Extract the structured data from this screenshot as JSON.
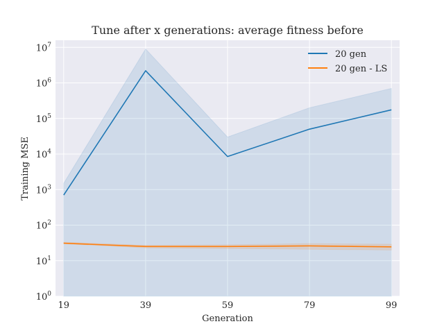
{
  "chart_data": {
    "type": "line",
    "title": "Tune after x generations: average fitness before",
    "xlabel": "Generation",
    "ylabel": "Training MSE",
    "x": [
      19,
      39,
      59,
      79,
      99
    ],
    "xlim": [
      17,
      101
    ],
    "yscale": "log",
    "ylim_exp": [
      0,
      7.2
    ],
    "y_ticks": [
      {
        "base": "10",
        "exp": "0",
        "value": 1
      },
      {
        "base": "10",
        "exp": "1",
        "value": 10
      },
      {
        "base": "10",
        "exp": "2",
        "value": 100
      },
      {
        "base": "10",
        "exp": "3",
        "value": 1000
      },
      {
        "base": "10",
        "exp": "4",
        "value": 10000
      },
      {
        "base": "10",
        "exp": "5",
        "value": 100000
      },
      {
        "base": "10",
        "exp": "6",
        "value": 1000000
      },
      {
        "base": "10",
        "exp": "7",
        "value": 10000000
      }
    ],
    "grid": true,
    "legend_position": "top-right",
    "series": [
      {
        "name": "20 gen",
        "color": "#1f77b4",
        "values": [
          700,
          2200000,
          8500,
          50000,
          175000
        ],
        "ci_low": [
          1,
          1,
          1,
          1,
          1
        ],
        "ci_high": [
          1500,
          9000000,
          30000,
          200000,
          700000
        ]
      },
      {
        "name": "20 gen - LS",
        "color": "#ff7f0e",
        "values": [
          31,
          25,
          25,
          26,
          24.5
        ],
        "ci_low": [
          30,
          23,
          22,
          21,
          20
        ],
        "ci_high": [
          33,
          27,
          28,
          30,
          29
        ]
      }
    ]
  },
  "colors": {
    "plot_background": "#eaeaf2",
    "grid": "#ffffff"
  }
}
